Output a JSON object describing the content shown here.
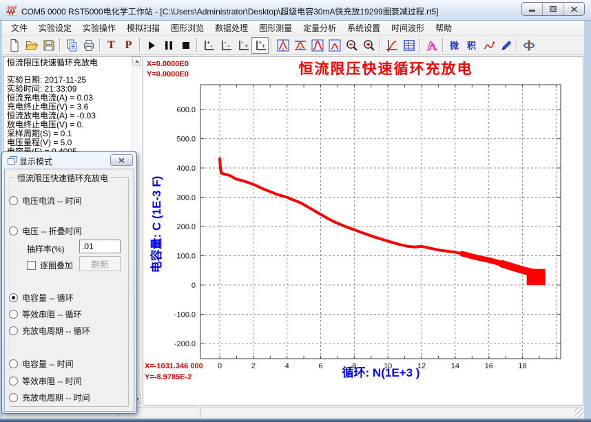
{
  "window": {
    "title": "COM5 0000 RST5000电化学工作站 - [C:\\Users\\Administrator\\Desktop\\超级电容30mA快充放19299圈衰减过程.rt5]"
  },
  "menu": {
    "items": [
      "文件",
      "实验设定",
      "实验操作",
      "模拟扫描",
      "图形浏览",
      "数据处理",
      "图形测量",
      "定量分析",
      "系统设置",
      "时间波形",
      "帮助"
    ]
  },
  "toolbar": {
    "labels": {
      "t": "T",
      "p": "P",
      "diff": "微",
      "integ": "积"
    },
    "icons": [
      "new-file",
      "open-file",
      "save-file",
      "copy",
      "print",
      "text-t",
      "text-p",
      "run",
      "pause",
      "stop",
      "axis-plus-minus",
      "axis-minus-minus",
      "axis-minus-plus",
      "axis-plus-plus",
      "peak-stretch",
      "peak-compress",
      "peak-zoom-full",
      "peak-zoom-window",
      "zoom-out",
      "zoom-in",
      "curve-axis",
      "data-table",
      "peak-overlay",
      "differentiate",
      "integrate",
      "smooth-curve",
      "edit-curve",
      "rotate-3d"
    ],
    "pressed_icon": "axis-plus-plus"
  },
  "info_panel": {
    "lines": [
      "恒流限压快速循环充放电",
      "实验日期: 2017-11-25",
      "实验时间: 21:33:09",
      "恒流充电电流(A) = 0.03",
      "充电终止电压(V) = 3.6",
      "恒流放电电流(A) = -0.03",
      "放电终止电压(V) = 0.",
      "采样周期(S) = 0.1",
      "电压量程(V) = 5.0",
      "电容量(F) = 0.4005"
    ]
  },
  "chart": {
    "readout_top_x": "X=0.0000E0",
    "readout_top_y": "Y=0.0000E0",
    "readout_bottom_x": "X=-1031.346 000",
    "readout_bottom_y": "Y=-8.9785E-2",
    "title_color": "#ff0000",
    "axis_label_color": "#0000ff",
    "curve_color": "#ff0000"
  },
  "chart_data": {
    "type": "line",
    "title": "恒流限压快速循环充放电",
    "xlabel": "循环: N(1E+3 )",
    "ylabel": "电容量: C (1E-3 F)",
    "xlim": [
      -1.15,
      20.3
    ],
    "ylim": [
      -260,
      680
    ],
    "grid": "dashed",
    "legend": "none",
    "x_tick_values": [
      0,
      2,
      4,
      6,
      8,
      10,
      12,
      14,
      16,
      18
    ],
    "x_tick_labels": [
      "0",
      "2",
      "4",
      "6",
      "8",
      "10",
      "12",
      "14",
      "16",
      "18"
    ],
    "x_gridline_values": [
      0,
      2,
      4,
      6,
      8,
      10,
      12,
      14,
      16,
      18,
      20
    ],
    "x_minor_tick_step": 1,
    "y_tick_values": [
      600,
      500,
      400,
      300,
      200,
      100,
      0,
      -100,
      -200
    ],
    "y_tick_labels": [
      "600.0",
      "500.0",
      "400.0",
      "300.0",
      "200.0",
      "100.0",
      "0",
      "-100.0",
      "-200.0"
    ],
    "series": [
      {
        "name": "capacity-vs-cycle",
        "color": "#ff0000",
        "points": [
          [
            0,
            432
          ],
          [
            0.05,
            395
          ],
          [
            0.1,
            382
          ],
          [
            0.3,
            379
          ],
          [
            0.5,
            376
          ],
          [
            0.7,
            371
          ],
          [
            0.9,
            364
          ],
          [
            1.1,
            360
          ],
          [
            1.4,
            356
          ],
          [
            1.7,
            350
          ],
          [
            2.0,
            344
          ],
          [
            2.3,
            336
          ],
          [
            2.6,
            328
          ],
          [
            3.0,
            319
          ],
          [
            3.4,
            310
          ],
          [
            3.8,
            303
          ],
          [
            4.0,
            300
          ],
          [
            4.3,
            292
          ],
          [
            4.6,
            286
          ],
          [
            4.9,
            278
          ],
          [
            5.2,
            268
          ],
          [
            5.5,
            258
          ],
          [
            5.8,
            248
          ],
          [
            6.1,
            238
          ],
          [
            6.4,
            228
          ],
          [
            6.7,
            219
          ],
          [
            7.0,
            211
          ],
          [
            7.3,
            204
          ],
          [
            7.6,
            197
          ],
          [
            8.0,
            189
          ],
          [
            8.4,
            180
          ],
          [
            8.8,
            172
          ],
          [
            9.2,
            164
          ],
          [
            9.6,
            157
          ],
          [
            10.0,
            150
          ],
          [
            10.4,
            143
          ],
          [
            10.8,
            137
          ],
          [
            11.2,
            132
          ],
          [
            11.6,
            130
          ],
          [
            12.0,
            132
          ],
          [
            12.4,
            127
          ],
          [
            12.8,
            122
          ],
          [
            13.2,
            118
          ],
          [
            13.6,
            115
          ],
          [
            14.0,
            112
          ],
          [
            14.4,
            107
          ],
          [
            14.8,
            101
          ],
          [
            15.2,
            95
          ],
          [
            15.6,
            90
          ],
          [
            16.0,
            85
          ],
          [
            16.4,
            79
          ],
          [
            16.8,
            72
          ],
          [
            17.2,
            65
          ],
          [
            17.6,
            58
          ],
          [
            18.0,
            51
          ],
          [
            18.4,
            45
          ],
          [
            18.8,
            40
          ]
        ]
      }
    ],
    "end_cluster": {
      "x_range": [
        18.25,
        19.35
      ],
      "y_range": [
        0,
        55
      ]
    },
    "thick_band_from_x": 14.4,
    "thicker_band_from_x": 16.8
  },
  "dialog": {
    "title": "显示模式",
    "group_label": "恒流限压快速循环充放电",
    "options": [
      {
        "label": "电压电流 -- 时间",
        "selected": false
      },
      {
        "label": "电压 -- 折叠时间",
        "selected": false
      },
      {
        "label": "电容量 -- 循环",
        "selected": true
      },
      {
        "label": "等效串阻 -- 循环",
        "selected": false
      },
      {
        "label": "充放电周期 -- 循环",
        "selected": false
      },
      {
        "label": "电容量 -- 时间",
        "selected": false
      },
      {
        "label": "等效串阻 -- 时间",
        "selected": false
      },
      {
        "label": "充放电周期 -- 时间",
        "selected": false
      }
    ],
    "sampling_label": "抽样率(%)",
    "sampling_value": ".01",
    "overlay_label": "逐圈叠加",
    "refresh_label": "刷新"
  },
  "statusbar": {
    "panes": [
      "",
      "",
      ""
    ]
  }
}
